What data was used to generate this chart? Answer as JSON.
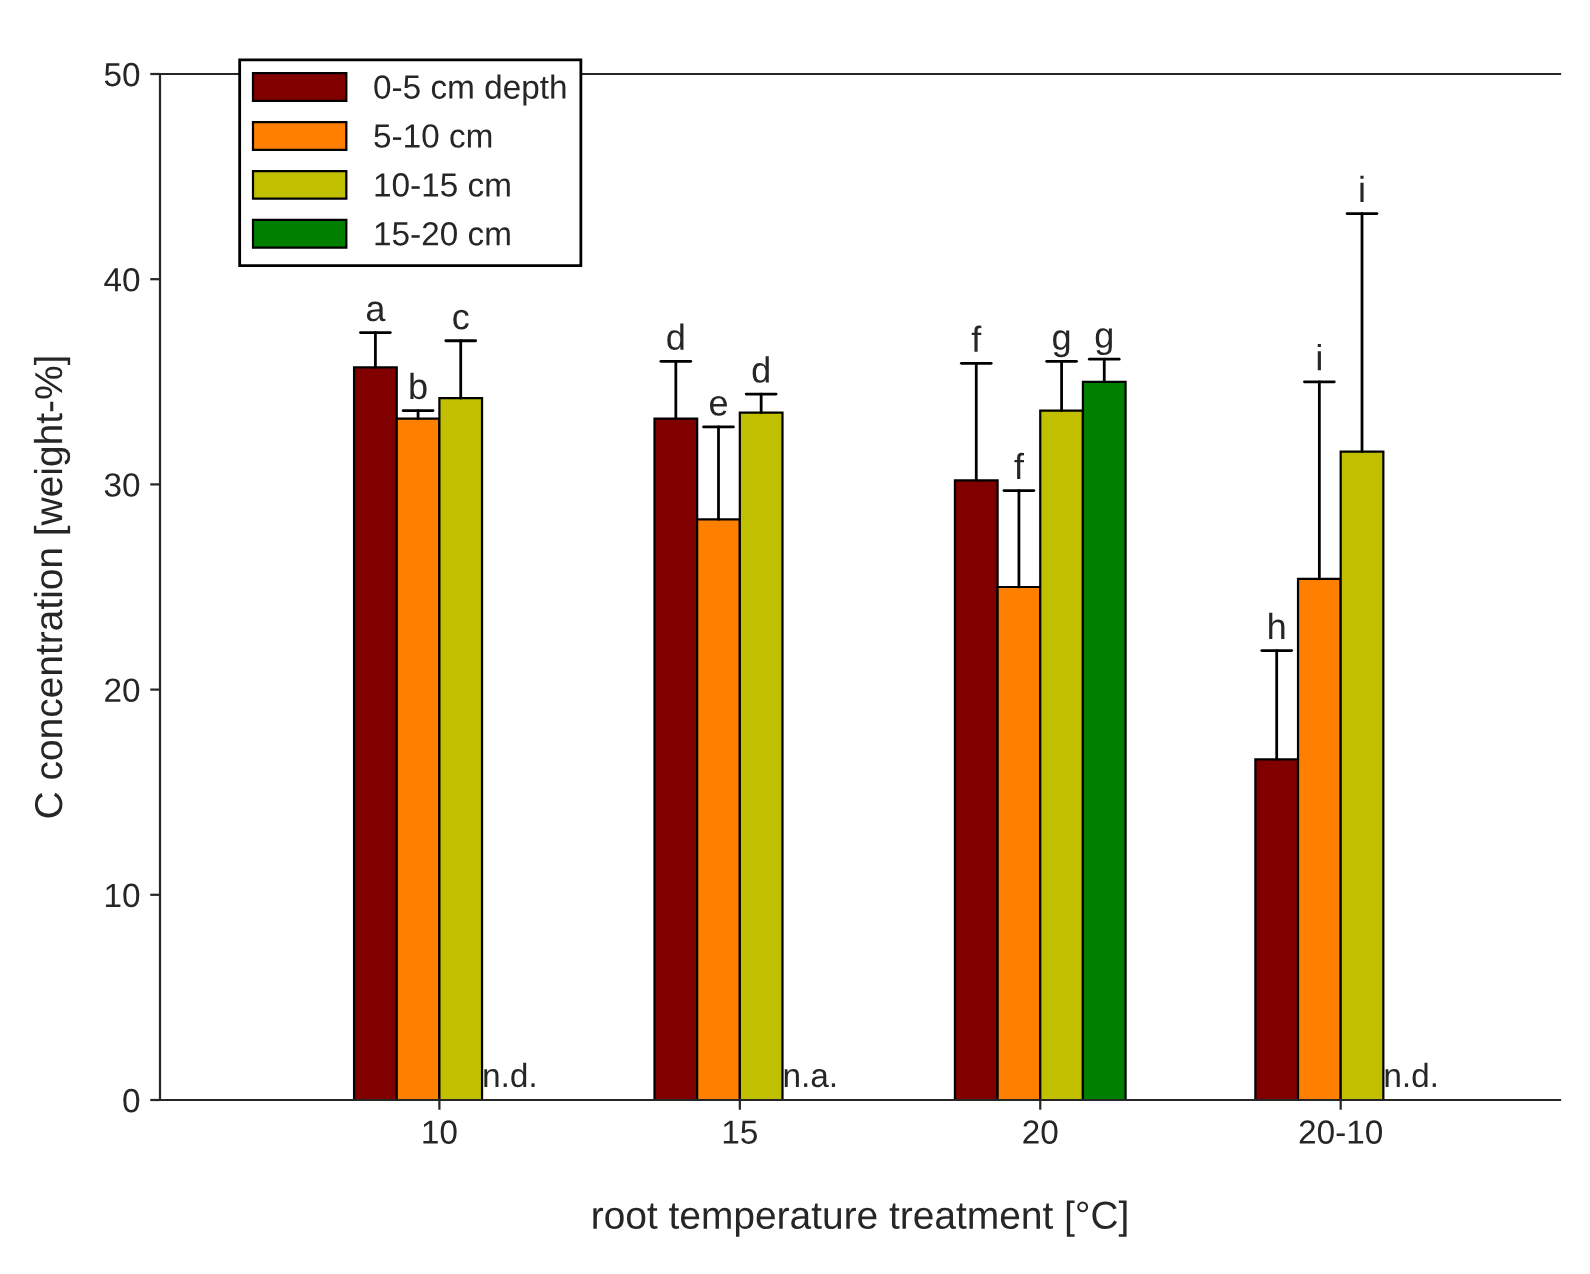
{
  "chart_data": {
    "type": "bar",
    "xlabel": "root temperature treatment [°C]",
    "ylabel": "C concentration [weight-%]",
    "categories": [
      "10",
      "15",
      "20",
      "20-10"
    ],
    "series": [
      {
        "name": "0-5 cm depth",
        "color": "#800000",
        "values": [
          35.7,
          33.2,
          30.2,
          16.6
        ],
        "errors": [
          [
            35.7,
            37.4
          ],
          [
            33.2,
            36.0
          ],
          [
            30.2,
            35.9
          ],
          [
            16.6,
            21.9
          ]
        ]
      },
      {
        "name": "5-10 cm",
        "color": "#ff8000",
        "values": [
          33.2,
          28.3,
          25.0,
          25.4
        ],
        "errors": [
          [
            33.2,
            33.6
          ],
          [
            28.3,
            32.8
          ],
          [
            25.0,
            29.7
          ],
          [
            25.4,
            35.0
          ]
        ]
      },
      {
        "name": "10-15 cm",
        "color": "#c0c000",
        "values": [
          34.2,
          33.5,
          33.6,
          31.6
        ],
        "errors": [
          [
            34.2,
            37.0
          ],
          [
            33.5,
            34.4
          ],
          [
            33.6,
            36.0
          ],
          [
            31.6,
            43.2
          ]
        ]
      },
      {
        "name": "15-20 cm",
        "color": "#008000",
        "values": [
          null,
          null,
          35.0,
          null
        ],
        "errors": [
          null,
          null,
          [
            35.0,
            36.1
          ],
          null
        ]
      }
    ],
    "ylim": [
      0,
      50
    ],
    "yticks": [
      0,
      10,
      20,
      30,
      40,
      50
    ],
    "grid": false,
    "legend": "top left",
    "annotations": [
      "a",
      "b",
      "c",
      "n.d.",
      "d",
      "e",
      "d",
      "n.a.",
      "f",
      "f",
      "g",
      "g",
      "h",
      "i",
      "i",
      "n.d."
    ]
  }
}
